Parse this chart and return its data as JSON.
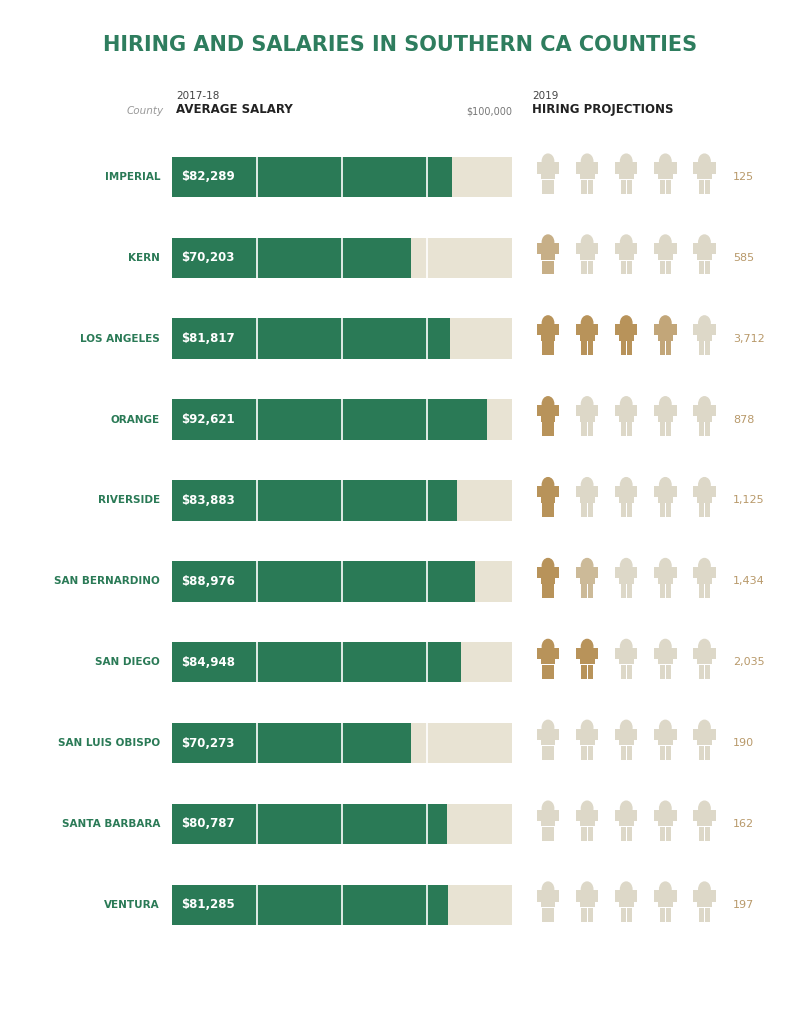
{
  "title": "HIRING AND SALARIES IN SOUTHERN CA COUNTIES",
  "title_color": "#2e7d5e",
  "bg_color": "#ffffff",
  "counties": [
    "IMPERIAL",
    "KERN",
    "LOS ANGELES",
    "ORANGE",
    "RIVERSIDE",
    "SAN BERNARDINO",
    "SAN DIEGO",
    "SAN LUIS OBISPO",
    "SANTA BARBARA",
    "VENTURA"
  ],
  "salaries": [
    82289,
    70203,
    81817,
    92621,
    83883,
    88976,
    84948,
    70273,
    80787,
    81285
  ],
  "salary_labels": [
    "$82,289",
    "$70,203",
    "$81,817",
    "$92,621",
    "$83,883",
    "$88,976",
    "$84,948",
    "$70,273",
    "$80,787",
    "$81,285"
  ],
  "hiring": [
    125,
    585,
    3712,
    878,
    1125,
    1434,
    2035,
    190,
    162,
    197
  ],
  "hiring_labels": [
    "125",
    "585",
    "3,712",
    "878",
    "1,125",
    "1,434",
    "2,035",
    "190",
    "162",
    "197"
  ],
  "bar_color": "#2a7a56",
  "bar_bg_color": "#e8e3d3",
  "max_salary": 100000,
  "county_color": "#2a7a56",
  "salary_text_color": "#ffffff",
  "hiring_number_color": "#b8996a",
  "person_color_filled": "#b8935a",
  "person_color_empty": "#ddd8c8",
  "col_header_salary_line1": "2017-18",
  "col_header_salary_line2": "AVERAGE SALARY",
  "col_header_county": "County",
  "col_header_hiring_line1": "2019",
  "col_header_hiring_line2": "HIRING PROJECTIONS",
  "dollar_label": "$100,000",
  "icon_scale": 1000.0,
  "n_icons": 5
}
